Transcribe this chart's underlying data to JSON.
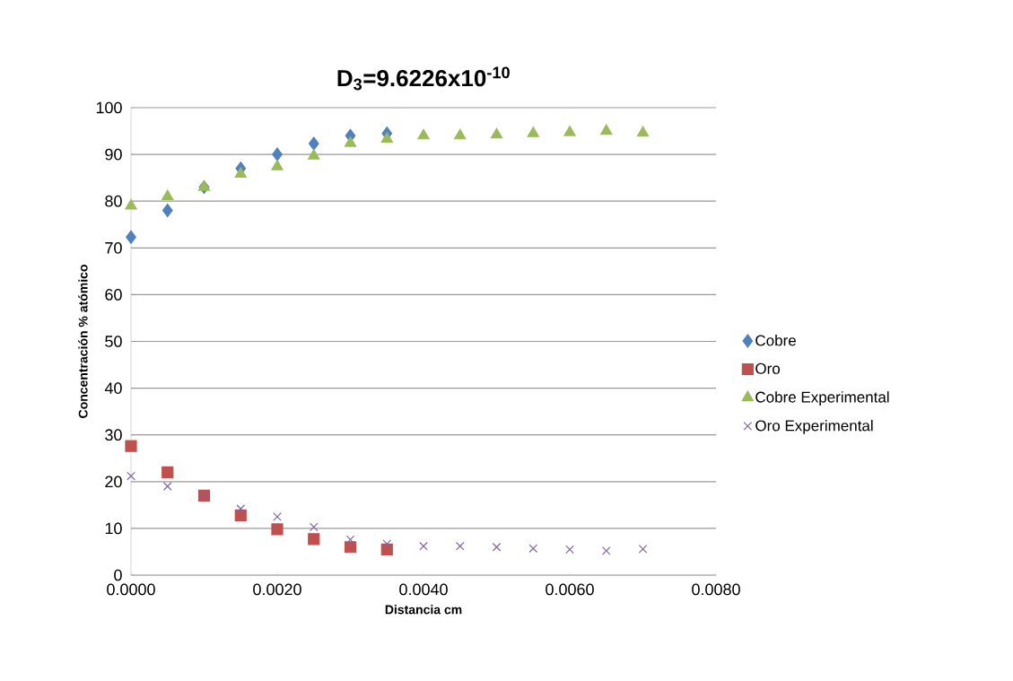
{
  "chart_data": {
    "type": "scatter",
    "title": "D$_{3}$=9.6226x10$^{-10}$",
    "xlabel": "Distancia cm",
    "ylabel": "Concentración % atómico",
    "xlim": [
      0,
      0.008
    ],
    "ylim": [
      0,
      100
    ],
    "xticks": [
      {
        "value": 0,
        "label": "0.0000"
      },
      {
        "value": 0.002,
        "label": "0.0020"
      },
      {
        "value": 0.004,
        "label": "0.0040"
      },
      {
        "value": 0.006,
        "label": "0.0060"
      },
      {
        "value": 0.008,
        "label": "0.0080"
      }
    ],
    "yticks": [
      0,
      10,
      20,
      30,
      40,
      50,
      60,
      70,
      80,
      90,
      100
    ],
    "grid": "y",
    "legend": "right",
    "series": [
      {
        "name": "Cobre",
        "color": "#4f81bd",
        "marker": "diamond",
        "x": [
          0,
          0.0005,
          0.001,
          0.0015,
          0.002,
          0.0025,
          0.003,
          0.0035
        ],
        "values": [
          72.3,
          78,
          83,
          87,
          90,
          92.3,
          94,
          94.5
        ]
      },
      {
        "name": "Oro",
        "color": "#c0504d",
        "marker": "square",
        "x": [
          0,
          0.0005,
          0.001,
          0.0015,
          0.002,
          0.0025,
          0.003,
          0.0035
        ],
        "values": [
          27.6,
          22,
          17,
          12.8,
          9.8,
          7.7,
          6,
          5.5
        ]
      },
      {
        "name": "Cobre Experimental",
        "color": "#9bbb59",
        "marker": "triangle",
        "x": [
          0,
          0.0005,
          0.001,
          0.0015,
          0.002,
          0.0025,
          0.003,
          0.0035,
          0.004,
          0.0045,
          0.005,
          0.0055,
          0.006,
          0.0065,
          0.007
        ],
        "values": [
          79,
          81,
          83,
          85.8,
          87.4,
          89.7,
          92.4,
          93.3,
          94,
          94,
          94.2,
          94.5,
          94.7,
          95,
          94.6
        ]
      },
      {
        "name": "Oro Experimental",
        "color": "#8064a2",
        "marker": "cross",
        "x": [
          0,
          0.0005,
          0.001,
          0.0015,
          0.002,
          0.0025,
          0.003,
          0.0035,
          0.004,
          0.0045,
          0.005,
          0.0055,
          0.006,
          0.0065,
          0.007
        ],
        "values": [
          21.2,
          19,
          17,
          14.2,
          12.5,
          10.3,
          7.6,
          6.7,
          6.2,
          6.2,
          6,
          5.7,
          5.5,
          5.2,
          5.6
        ]
      }
    ]
  }
}
